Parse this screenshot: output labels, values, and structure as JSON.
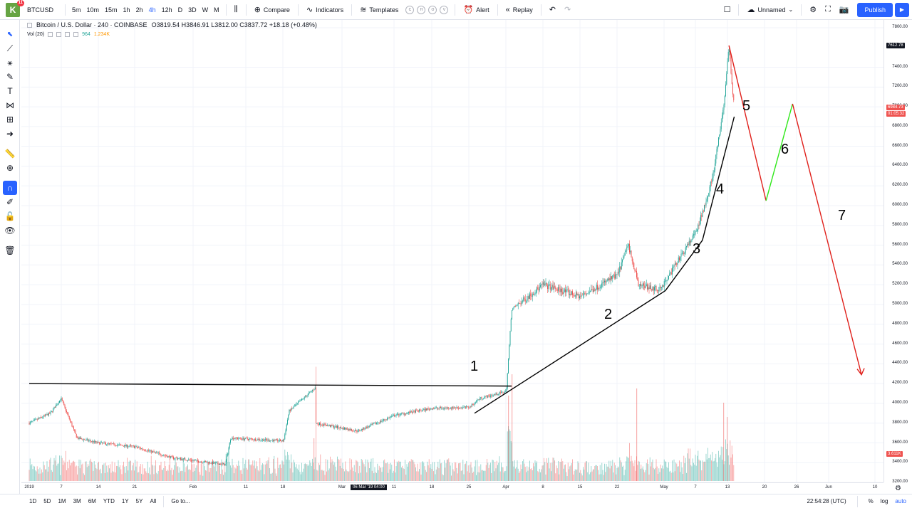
{
  "toolbar": {
    "logo_badge": "11",
    "symbol": "BTCUSD",
    "intervals": [
      "5m",
      "10m",
      "15m",
      "1h",
      "2h",
      "4h",
      "12h",
      "D",
      "3D",
      "W",
      "M"
    ],
    "active_interval": "4h",
    "compare_label": "Compare",
    "indicators_label": "Indicators",
    "templates_label": "Templates",
    "template_circles": [
      "C",
      "H",
      "O",
      "V"
    ],
    "alert_label": "Alert",
    "replay_label": "Replay",
    "layout_name": "Unnamed",
    "publish_label": "Publish"
  },
  "legend": {
    "title": "Bitcoin / U.S. Dollar · 240 · COINBASE",
    "open": "O3819.54",
    "high": "H3846.91",
    "low": "L3812.00",
    "close": "C3837.72",
    "change": "+18.18 (+0.48%)",
    "vol_label": "Vol (20)",
    "vol_value": "964",
    "vol_ma": "1.234K"
  },
  "price_scale": {
    "ticks": [
      "7800.00",
      "7400.00",
      "7200.00",
      "7000.00",
      "6800.00",
      "6600.00",
      "6400.00",
      "6200.00",
      "6000.00",
      "5800.00",
      "5600.00",
      "5400.00",
      "5200.00",
      "5000.00",
      "4800.00",
      "4600.00",
      "4400.00",
      "4200.00",
      "4000.00",
      "3800.00",
      "3600.00",
      "3400.00",
      "3200.00"
    ],
    "last_price_label": "7612.78",
    "current_price": "6984.73",
    "countdown": "01:05:32",
    "volume_label": "3.611K"
  },
  "time_scale": {
    "ticks": [
      "2019",
      "7",
      "14",
      "21",
      "Feb",
      "11",
      "18",
      "Mar",
      "11",
      "18",
      "25",
      "Apr",
      "8",
      "15",
      "22",
      "May",
      "7",
      "13",
      "20",
      "26",
      "Jun",
      "10"
    ],
    "crosshair_label": "06 Mar '19  04:00"
  },
  "bottom": {
    "ranges": [
      "1D",
      "5D",
      "1M",
      "3M",
      "6M",
      "YTD",
      "1Y",
      "5Y",
      "All"
    ],
    "goto_label": "Go to...",
    "clock": "22:54:28 (UTC)",
    "percent_label": "%",
    "log_label": "log",
    "auto_label": "auto"
  },
  "annotations": [
    "1",
    "2",
    "3",
    "4",
    "5",
    "6",
    "7"
  ],
  "colors": {
    "accent": "#2962ff",
    "up": "#26a69a",
    "down": "#ef5350",
    "drawing_black": "#000000",
    "drawing_red": "#e0201b",
    "drawing_green": "#2ee818"
  },
  "chart_data": {
    "type": "candlestick",
    "symbol": "BTCUSD",
    "interval": "240",
    "ylim": [
      3100,
      7850
    ],
    "time_ticks": [
      "2019",
      "7",
      "14",
      "21",
      "Feb",
      "11",
      "18",
      "Mar",
      "11",
      "18",
      "25",
      "Apr",
      "8",
      "15",
      "22",
      "May",
      "7",
      "13",
      "20",
      "26",
      "Jun",
      "10"
    ],
    "price_path": [
      {
        "t": "2019-01-01",
        "p": 3800
      },
      {
        "t": "2019-01-05",
        "p": 3900
      },
      {
        "t": "2019-01-07",
        "p": 4050
      },
      {
        "t": "2019-01-10",
        "p": 3650
      },
      {
        "t": "2019-01-14",
        "p": 3600
      },
      {
        "t": "2019-01-21",
        "p": 3560
      },
      {
        "t": "2019-01-28",
        "p": 3450
      },
      {
        "t": "2019-02-07",
        "p": 3380
      },
      {
        "t": "2019-02-08",
        "p": 3650
      },
      {
        "t": "2019-02-18",
        "p": 3620
      },
      {
        "t": "2019-02-19",
        "p": 3920
      },
      {
        "t": "2019-02-24",
        "p": 4160
      },
      {
        "t": "2019-02-24",
        "p": 3800
      },
      {
        "t": "2019-03-04",
        "p": 3720
      },
      {
        "t": "2019-03-11",
        "p": 3880
      },
      {
        "t": "2019-03-18",
        "p": 3950
      },
      {
        "t": "2019-03-25",
        "p": 3960
      },
      {
        "t": "2019-03-27",
        "p": 4050
      },
      {
        "t": "2019-04-01",
        "p": 4120
      },
      {
        "t": "2019-04-02",
        "p": 4950
      },
      {
        "t": "2019-04-08",
        "p": 5200
      },
      {
        "t": "2019-04-15",
        "p": 5080
      },
      {
        "t": "2019-04-22",
        "p": 5300
      },
      {
        "t": "2019-04-24",
        "p": 5600
      },
      {
        "t": "2019-04-26",
        "p": 5200
      },
      {
        "t": "2019-04-30",
        "p": 5150
      },
      {
        "t": "2019-05-07",
        "p": 5750
      },
      {
        "t": "2019-05-10",
        "p": 6300
      },
      {
        "t": "2019-05-12",
        "p": 7000
      },
      {
        "t": "2019-05-13",
        "p": 7600
      },
      {
        "t": "2019-05-14",
        "p": 6984.73
      }
    ],
    "drawn_lines": [
      {
        "label": "1",
        "color": "black",
        "from": {
          "t": "2019-01-01",
          "p": 4200
        },
        "to": {
          "t": "2019-04-02",
          "p": 4175
        }
      },
      {
        "label": "2",
        "color": "black",
        "from": {
          "t": "2019-03-26",
          "p": 3900
        },
        "to": {
          "t": "2019-05-01",
          "p": 5140
        }
      },
      {
        "label": "3",
        "color": "black",
        "from": {
          "t": "2019-05-01",
          "p": 5140
        },
        "to": {
          "t": "2019-05-08",
          "p": 5650
        }
      },
      {
        "label": "4",
        "color": "black",
        "from": {
          "t": "2019-05-08",
          "p": 5650
        },
        "to": {
          "t": "2019-05-14",
          "p": 6900
        }
      },
      {
        "label": "5",
        "color": "red",
        "from": {
          "t": "2019-05-13",
          "p": 7620
        },
        "to": {
          "t": "2019-05-20",
          "p": 6050
        }
      },
      {
        "label": "6",
        "color": "green",
        "from": {
          "t": "2019-05-20",
          "p": 6050
        },
        "to": {
          "t": "2019-05-25",
          "p": 7030
        }
      },
      {
        "label": "7",
        "color": "red",
        "from": {
          "t": "2019-05-25",
          "p": 7030
        },
        "to": {
          "t": "2019-06-07",
          "p": 4290
        }
      }
    ]
  }
}
